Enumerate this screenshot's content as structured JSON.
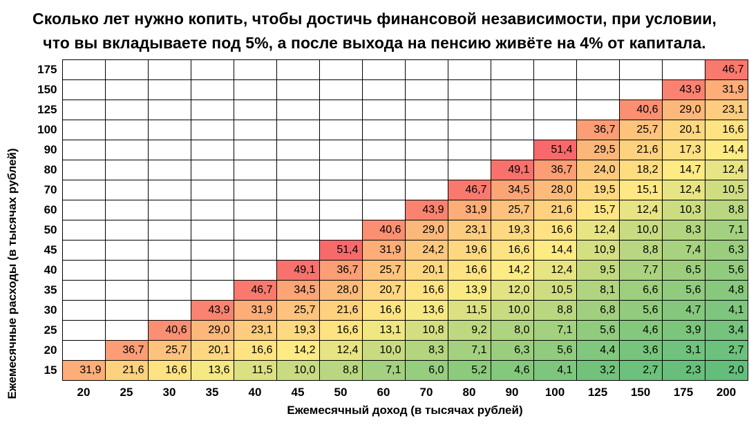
{
  "chart_data": {
    "type": "heatmap",
    "title_line1": "Сколько лет нужно копить, чтобы достичь финансовой независимости, при условии,",
    "title_line2": "что вы вкладываете под 5%, а после выхода на пенсию живёте на 4% от капитала.",
    "xlabel": "Ежемесячный доход (в тысячах рублей)",
    "ylabel": "Ежемесячные расходы (в тысячах рублей)",
    "x_categories": [
      "20",
      "25",
      "30",
      "35",
      "40",
      "45",
      "50",
      "60",
      "70",
      "80",
      "90",
      "100",
      "125",
      "150",
      "175",
      "200"
    ],
    "y_categories": [
      "175",
      "150",
      "125",
      "100",
      "90",
      "80",
      "70",
      "60",
      "50",
      "45",
      "40",
      "35",
      "30",
      "25",
      "20",
      "15"
    ],
    "values": [
      [
        null,
        null,
        null,
        null,
        null,
        null,
        null,
        null,
        null,
        null,
        null,
        null,
        null,
        null,
        null,
        46.7
      ],
      [
        null,
        null,
        null,
        null,
        null,
        null,
        null,
        null,
        null,
        null,
        null,
        null,
        null,
        null,
        43.9,
        31.9
      ],
      [
        null,
        null,
        null,
        null,
        null,
        null,
        null,
        null,
        null,
        null,
        null,
        null,
        null,
        40.6,
        29.0,
        23.1
      ],
      [
        null,
        null,
        null,
        null,
        null,
        null,
        null,
        null,
        null,
        null,
        null,
        null,
        36.7,
        25.7,
        20.1,
        16.6
      ],
      [
        null,
        null,
        null,
        null,
        null,
        null,
        null,
        null,
        null,
        null,
        null,
        51.4,
        29.5,
        21.6,
        17.3,
        14.4
      ],
      [
        null,
        null,
        null,
        null,
        null,
        null,
        null,
        null,
        null,
        null,
        49.1,
        36.7,
        24.0,
        18.2,
        14.7,
        12.4
      ],
      [
        null,
        null,
        null,
        null,
        null,
        null,
        null,
        null,
        null,
        46.7,
        34.5,
        28.0,
        19.5,
        15.1,
        12.4,
        10.5
      ],
      [
        null,
        null,
        null,
        null,
        null,
        null,
        null,
        null,
        43.9,
        31.9,
        25.7,
        21.6,
        15.7,
        12.4,
        10.3,
        8.8
      ],
      [
        null,
        null,
        null,
        null,
        null,
        null,
        null,
        40.6,
        29.0,
        23.1,
        19.3,
        16.6,
        12.4,
        10.0,
        8.3,
        7.1
      ],
      [
        null,
        null,
        null,
        null,
        null,
        null,
        51.4,
        31.9,
        24.2,
        19.6,
        16.6,
        14.4,
        10.9,
        8.8,
        7.4,
        6.3
      ],
      [
        null,
        null,
        null,
        null,
        null,
        49.1,
        36.7,
        25.7,
        20.1,
        16.6,
        14.2,
        12.4,
        9.5,
        7.7,
        6.5,
        5.6
      ],
      [
        null,
        null,
        null,
        null,
        46.7,
        34.5,
        28.0,
        20.7,
        16.6,
        13.9,
        12.0,
        10.5,
        8.1,
        6.6,
        5.6,
        4.8
      ],
      [
        null,
        null,
        null,
        43.9,
        31.9,
        25.7,
        21.6,
        16.6,
        13.6,
        11.5,
        10.0,
        8.8,
        6.8,
        5.6,
        4.7,
        4.1
      ],
      [
        null,
        null,
        40.6,
        29.0,
        23.1,
        19.3,
        16.6,
        13.1,
        10.8,
        9.2,
        8.0,
        7.1,
        5.6,
        4.6,
        3.9,
        3.4
      ],
      [
        null,
        36.7,
        25.7,
        20.1,
        16.6,
        14.2,
        12.4,
        10.0,
        8.3,
        7.1,
        6.3,
        5.6,
        4.4,
        3.6,
        3.1,
        2.7
      ],
      [
        31.9,
        21.6,
        16.6,
        13.6,
        11.5,
        10.0,
        8.8,
        7.1,
        6.0,
        5.2,
        4.6,
        4.1,
        3.2,
        2.7,
        2.3,
        2.0
      ]
    ],
    "decimal_separator": ",",
    "colors": {
      "scale_low_green": "#63BE7B",
      "scale_mid_yellow": "#FFEB84",
      "scale_high_red": "#F8696B",
      "empty_cell": "#FFFFFF",
      "gridline": "#000000",
      "text": "#000000"
    },
    "layout": {
      "grid": true,
      "legend": "none",
      "value_range": [
        2.0,
        51.4
      ]
    }
  }
}
